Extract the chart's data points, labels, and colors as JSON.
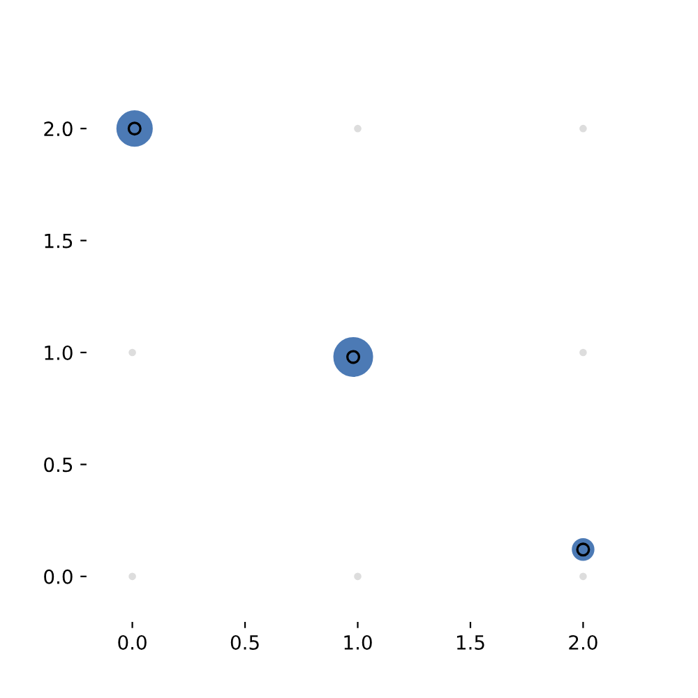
{
  "chart_data": {
    "type": "bubble",
    "xlim": [
      -0.2,
      2.2
    ],
    "ylim": [
      -0.2,
      2.2
    ],
    "xticks": [
      {
        "value": 0,
        "label": "0.0"
      },
      {
        "value": 0.5,
        "label": "0.5"
      },
      {
        "value": 1,
        "label": "1.0"
      },
      {
        "value": 1.5,
        "label": "1.5"
      },
      {
        "value": 2,
        "label": "2.0"
      }
    ],
    "yticks": [
      {
        "value": 0,
        "label": "0.0"
      },
      {
        "value": 0.5,
        "label": "0.5"
      },
      {
        "value": 1,
        "label": "1.0"
      },
      {
        "value": 1.5,
        "label": "1.5"
      },
      {
        "value": 2,
        "label": "2.0"
      }
    ],
    "grid": false,
    "legend": false,
    "series": [
      {
        "type": "scatter",
        "color": "#dddddd",
        "x": [
          0,
          1,
          2,
          0,
          2,
          1,
          2
        ],
        "values": [
          0,
          0,
          0,
          1,
          1,
          2,
          2
        ]
      },
      {
        "color": "#4c7ab5",
        "x": [
          0.01,
          0.98,
          2.0
        ],
        "values": [
          2.0,
          0.98,
          0.12
        ],
        "sizes": [
          0.83,
          1,
          0.3
        ]
      },
      {
        "type": "scatter",
        "color": "#000000",
        "marker": "circle",
        "x": [
          0.01,
          0.98,
          2.0
        ],
        "values": [
          2.0,
          0.98,
          0.12
        ]
      }
    ]
  }
}
